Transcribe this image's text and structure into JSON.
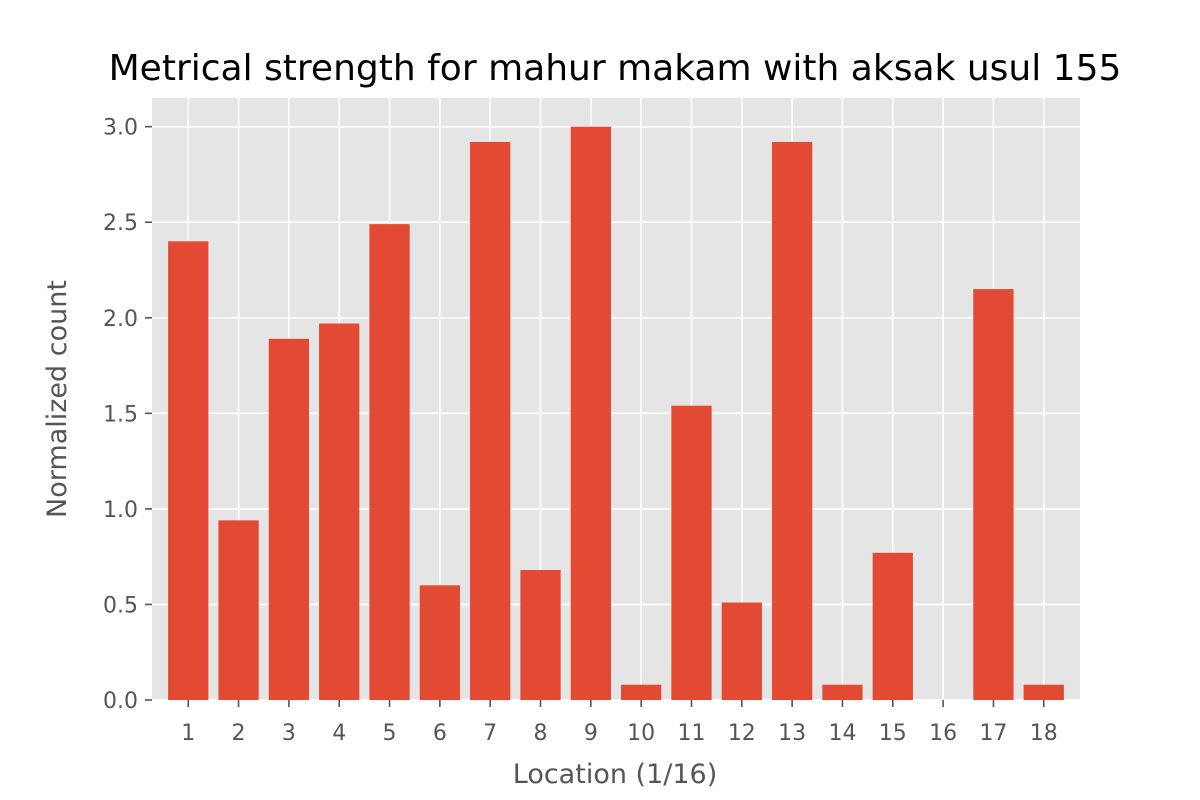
{
  "chart_data": {
    "type": "bar",
    "title": "Metrical strength for mahur makam with aksak usul 155",
    "xlabel": "Location (1/16)",
    "ylabel": "Normalized count",
    "categories": [
      "1",
      "2",
      "3",
      "4",
      "5",
      "6",
      "7",
      "8",
      "9",
      "10",
      "11",
      "12",
      "13",
      "14",
      "15",
      "16",
      "17",
      "18"
    ],
    "values": [
      2.4,
      0.94,
      1.89,
      1.97,
      2.49,
      0.6,
      2.92,
      0.68,
      3.0,
      0.08,
      1.54,
      0.51,
      2.92,
      0.08,
      0.77,
      0.0,
      2.15,
      0.08
    ],
    "ylim": [
      0,
      3.15
    ],
    "yticks": [
      "0.0",
      "0.5",
      "1.0",
      "1.5",
      "2.0",
      "2.5",
      "3.0"
    ],
    "grid": true,
    "style": "ggplot",
    "colors": {
      "bar": "#E24A33",
      "plot_background": "#E5E5E5",
      "grid": "#FFFFFF",
      "tick_text": "#555555",
      "title_text": "#000000"
    }
  }
}
